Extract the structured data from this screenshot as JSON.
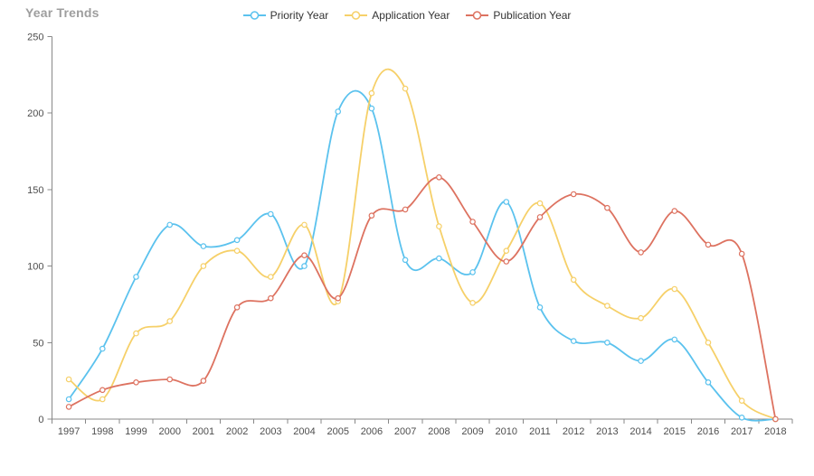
{
  "title": "Year Trends",
  "axis": {
    "line_color": "#888888",
    "label_color": "#4e4e4e"
  },
  "chart_data": {
    "type": "line",
    "title": "Year Trends",
    "smooth": true,
    "grid": false,
    "legend_position": "top",
    "xlabel": "",
    "ylabel": "",
    "ylim": [
      0,
      250
    ],
    "yticks": [
      0,
      50,
      100,
      150,
      200,
      250
    ],
    "categories": [
      "1997",
      "1998",
      "1999",
      "2000",
      "2001",
      "2002",
      "2003",
      "2004",
      "2005",
      "2006",
      "2007",
      "2008",
      "2009",
      "2010",
      "2011",
      "2012",
      "2013",
      "2014",
      "2015",
      "2016",
      "2017",
      "2018"
    ],
    "series": [
      {
        "name": "Priority Year",
        "color": "#5bc2ee",
        "values": [
          13,
          46,
          93,
          127,
          113,
          117,
          134,
          100,
          201,
          203,
          104,
          105,
          96,
          142,
          73,
          51,
          50,
          38,
          52,
          24,
          1,
          0
        ]
      },
      {
        "name": "Application Year",
        "color": "#f6d069",
        "values": [
          26,
          13,
          56,
          64,
          100,
          110,
          93,
          127,
          77,
          213,
          216,
          126,
          76,
          110,
          141,
          91,
          74,
          66,
          85,
          50,
          12,
          0
        ]
      },
      {
        "name": "Publication Year",
        "color": "#dd7260",
        "values": [
          8,
          19,
          24,
          26,
          25,
          73,
          79,
          107,
          79,
          133,
          137,
          158,
          129,
          103,
          132,
          147,
          138,
          109,
          136,
          114,
          108,
          0
        ]
      }
    ]
  }
}
